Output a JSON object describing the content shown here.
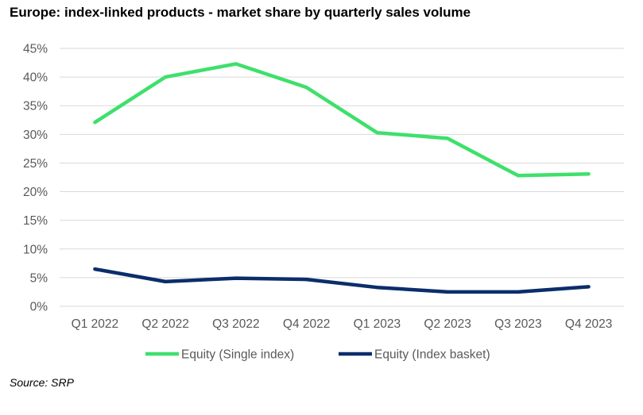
{
  "title": "Europe: index-linked products - market share by quarterly sales volume",
  "source": "Source: SRP",
  "chart_data": {
    "type": "line",
    "categories": [
      "Q1 2022",
      "Q2 2022",
      "Q3 2022",
      "Q4 2022",
      "Q1 2023",
      "Q2 2023",
      "Q3 2023",
      "Q4 2023"
    ],
    "y_ticks": [
      "0%",
      "5%",
      "10%",
      "15%",
      "20%",
      "25%",
      "30%",
      "35%",
      "40%",
      "45%"
    ],
    "ylim": [
      0,
      45
    ],
    "grid": true,
    "legend_position": "bottom",
    "series": [
      {
        "name": "Equity (Single index)",
        "color": "#3ee06b",
        "values": [
          32.1,
          40.0,
          42.3,
          38.2,
          30.3,
          29.3,
          22.8,
          23.1
        ]
      },
      {
        "name": "Equity (Index basket)",
        "color": "#0b2d6b",
        "values": [
          6.5,
          4.3,
          4.9,
          4.7,
          3.3,
          2.5,
          2.5,
          3.4
        ]
      }
    ]
  }
}
